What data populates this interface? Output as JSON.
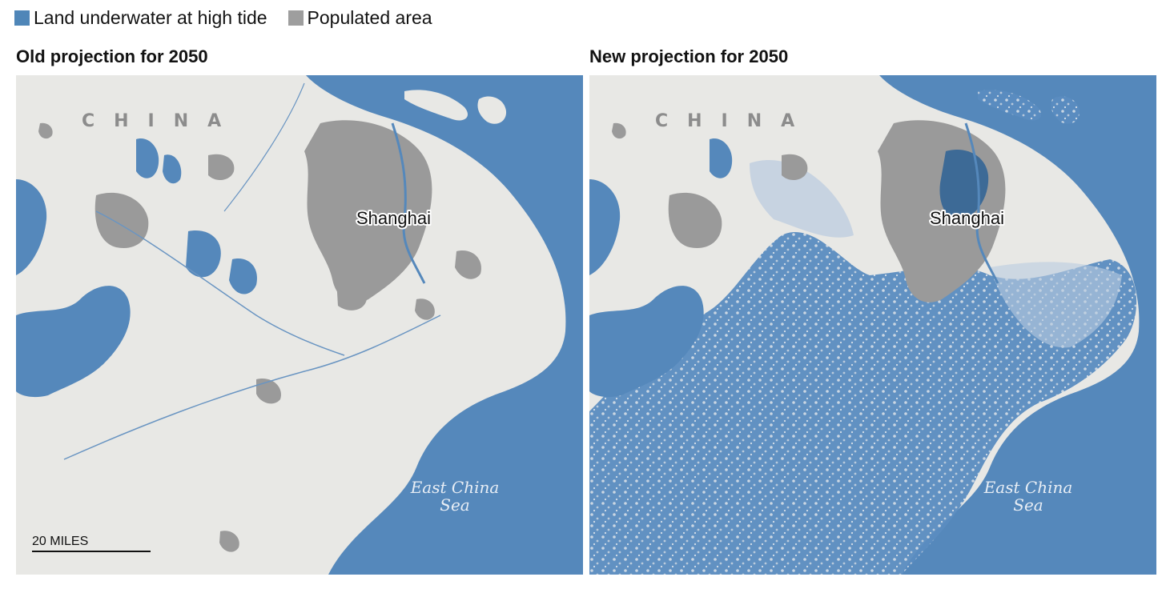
{
  "legend": {
    "items": [
      {
        "label": "Land underwater at high tide",
        "color": "#4f86b8"
      },
      {
        "label": "Populated area",
        "color": "#9e9e9e"
      }
    ]
  },
  "colors": {
    "water": "#5588bb",
    "land": "#e8e8e5",
    "populated": "#9a9a9a",
    "flood": "#4f86b8"
  },
  "panels": [
    {
      "title": "Old projection for 2050",
      "country_label": "CHINA",
      "city_label": "Shanghai",
      "sea_label_line1": "East China",
      "sea_label_line2": "Sea",
      "scale_label": "20 MILES"
    },
    {
      "title": "New projection for 2050",
      "country_label": "CHINA",
      "city_label": "Shanghai",
      "sea_label_line1": "East China",
      "sea_label_line2": "Sea"
    }
  ]
}
